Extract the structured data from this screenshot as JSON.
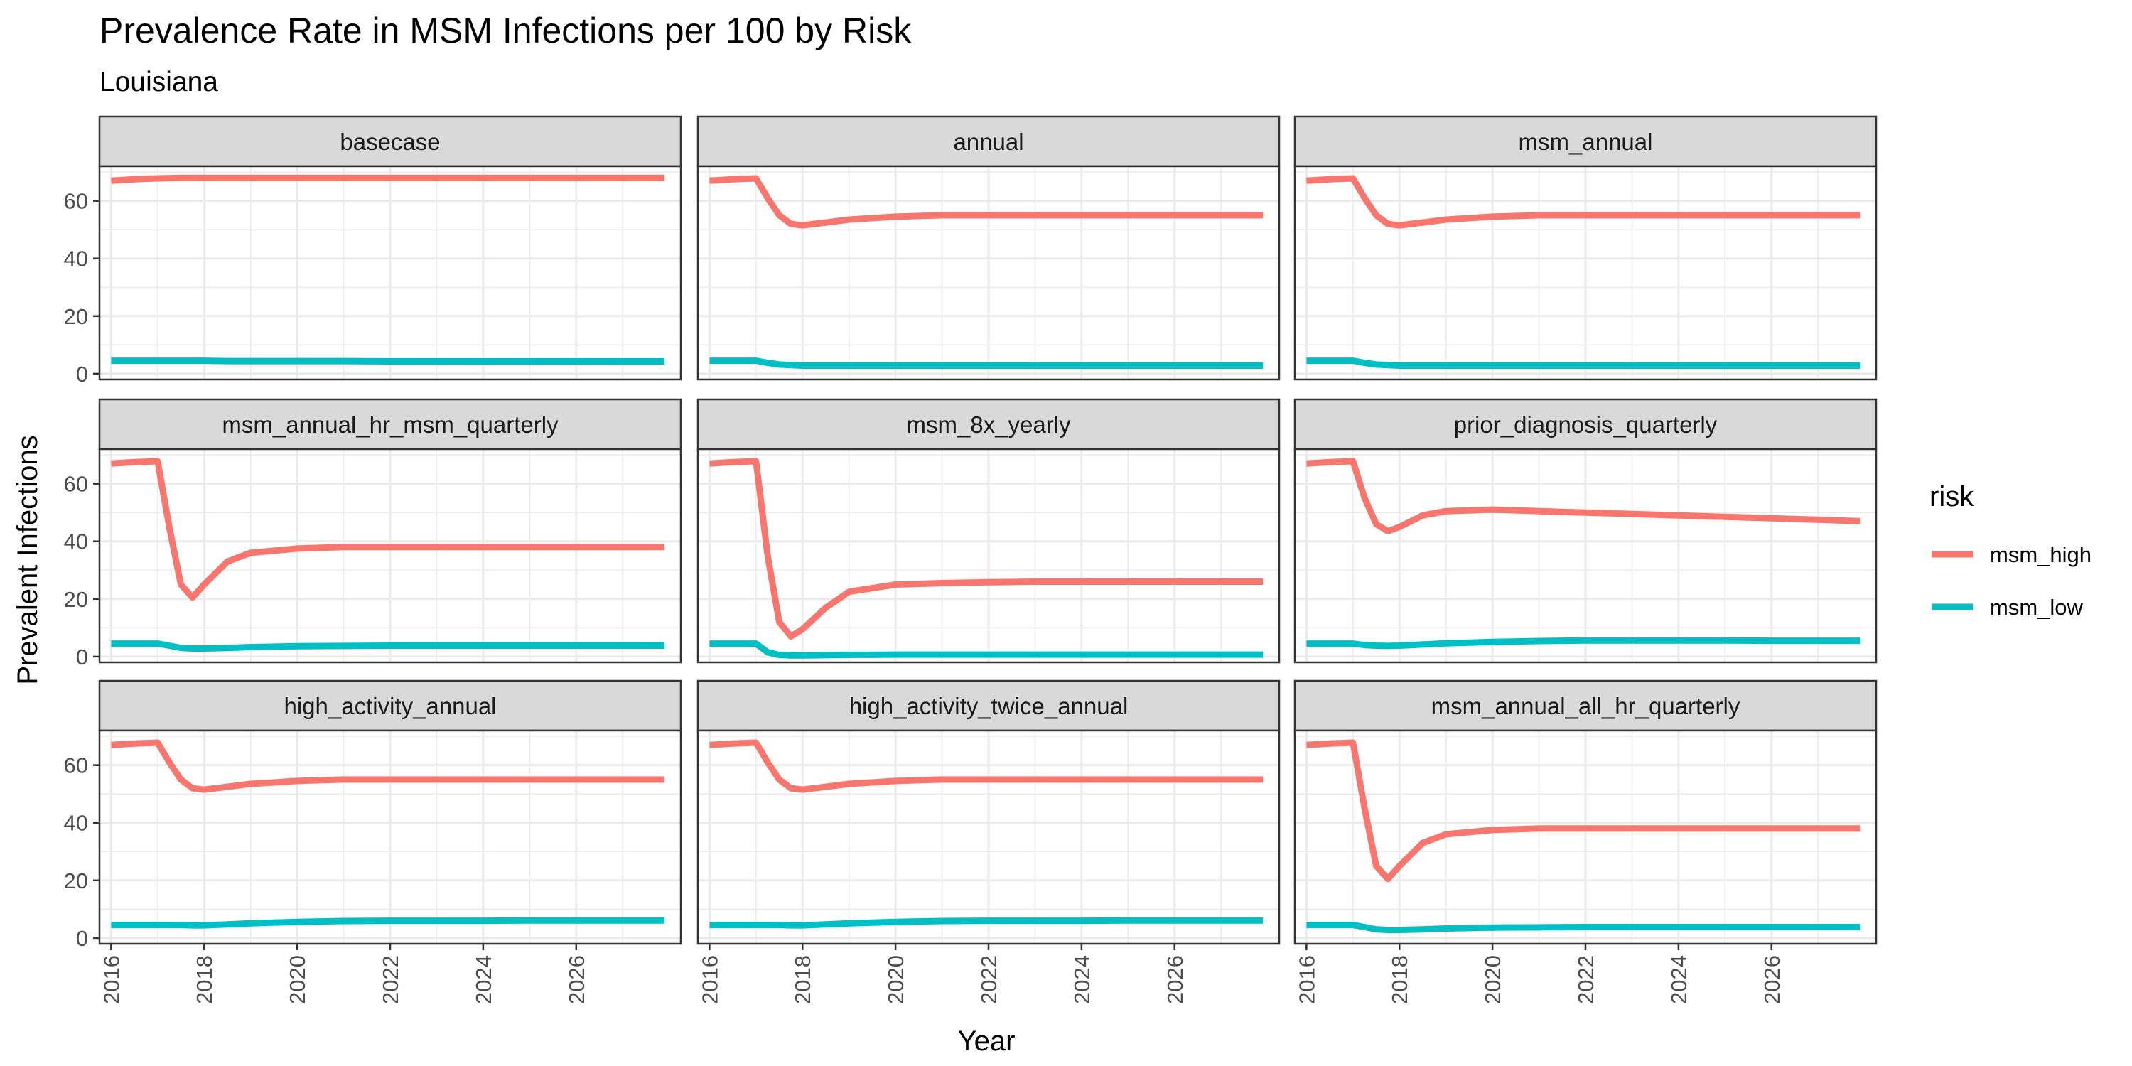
{
  "chart_data": {
    "type": "line",
    "title": "Prevalence Rate in MSM Infections per 100 by Risk",
    "subtitle": "Louisiana",
    "xlabel": "Year",
    "ylabel": "Prevalent Infections",
    "xlim": [
      2015.75,
      2028.25
    ],
    "ylim": [
      -2,
      72
    ],
    "xticks": [
      2016,
      2018,
      2020,
      2022,
      2024,
      2026
    ],
    "yticks": [
      0,
      20,
      40,
      60
    ],
    "grid": true,
    "legend": {
      "title": "risk",
      "position": "right",
      "items": [
        {
          "label": "msm_high",
          "color": "#F8766D"
        },
        {
          "label": "msm_low",
          "color": "#00BFC4"
        }
      ]
    },
    "series_colors": {
      "msm_high": "#F8766D",
      "msm_low": "#00BFC4"
    },
    "x": [
      2016,
      2016.5,
      2017,
      2017.25,
      2017.5,
      2017.75,
      2018,
      2018.5,
      2019,
      2020,
      2021,
      2022,
      2023,
      2024,
      2025,
      2026,
      2027,
      2027.9
    ],
    "facets": [
      {
        "label": "basecase",
        "series": [
          {
            "name": "msm_high",
            "values": [
              67,
              67.5,
              67.8,
              67.9,
              68,
              68,
              68,
              68,
              68,
              68,
              68,
              68,
              68,
              68,
              68,
              68,
              68,
              68
            ]
          },
          {
            "name": "msm_low",
            "values": [
              4.5,
              4.5,
              4.5,
              4.5,
              4.5,
              4.5,
              4.5,
              4.4,
              4.4,
              4.4,
              4.4,
              4.3,
              4.3,
              4.3,
              4.3,
              4.3,
              4.3,
              4.3
            ]
          }
        ]
      },
      {
        "label": "annual",
        "series": [
          {
            "name": "msm_high",
            "values": [
              67,
              67.5,
              67.8,
              61,
              55,
              52,
              51.5,
              52.5,
              53.5,
              54.5,
              55,
              55,
              55,
              55,
              55,
              55,
              55,
              55
            ]
          },
          {
            "name": "msm_low",
            "values": [
              4.5,
              4.5,
              4.5,
              3.8,
              3.2,
              3,
              2.8,
              2.8,
              2.8,
              2.8,
              2.8,
              2.8,
              2.8,
              2.8,
              2.8,
              2.8,
              2.8,
              2.8
            ]
          }
        ]
      },
      {
        "label": "msm_annual",
        "series": [
          {
            "name": "msm_high",
            "values": [
              67,
              67.5,
              67.8,
              61,
              55,
              52,
              51.5,
              52.5,
              53.5,
              54.5,
              55,
              55,
              55,
              55,
              55,
              55,
              55,
              55
            ]
          },
          {
            "name": "msm_low",
            "values": [
              4.5,
              4.5,
              4.5,
              3.8,
              3.2,
              3,
              2.8,
              2.8,
              2.8,
              2.8,
              2.8,
              2.8,
              2.8,
              2.8,
              2.8,
              2.8,
              2.8,
              2.8
            ]
          }
        ]
      },
      {
        "label": "msm_annual_hr_msm_quarterly",
        "series": [
          {
            "name": "msm_high",
            "values": [
              67,
              67.5,
              67.8,
              45,
              25,
              20.5,
              25,
              33,
              36,
              37.5,
              38,
              38,
              38,
              38,
              38,
              38,
              38,
              38
            ]
          },
          {
            "name": "msm_low",
            "values": [
              4.5,
              4.5,
              4.5,
              3.8,
              3,
              2.8,
              2.8,
              3,
              3.3,
              3.6,
              3.7,
              3.8,
              3.8,
              3.8,
              3.8,
              3.8,
              3.8,
              3.8
            ]
          }
        ]
      },
      {
        "label": "msm_8x_yearly",
        "series": [
          {
            "name": "msm_high",
            "values": [
              67,
              67.5,
              67.8,
              35,
              12,
              7,
              9.5,
              17,
              22.5,
              25,
              25.5,
              25.8,
              26,
              26,
              26,
              26,
              26,
              26
            ]
          },
          {
            "name": "msm_low",
            "values": [
              4.5,
              4.5,
              4.5,
              1.5,
              0.6,
              0.4,
              0.4,
              0.5,
              0.6,
              0.7,
              0.7,
              0.7,
              0.7,
              0.7,
              0.7,
              0.7,
              0.7,
              0.7
            ]
          }
        ]
      },
      {
        "label": "prior_diagnosis_quarterly",
        "series": [
          {
            "name": "msm_high",
            "values": [
              67,
              67.5,
              67.8,
              55,
              46,
              43.5,
              45,
              49,
              50.5,
              51,
              50.5,
              50,
              49.5,
              49,
              48.5,
              48,
              47.5,
              47
            ]
          },
          {
            "name": "msm_low",
            "values": [
              4.5,
              4.5,
              4.5,
              4,
              3.8,
              3.7,
              3.8,
              4.2,
              4.6,
              5.1,
              5.4,
              5.6,
              5.6,
              5.6,
              5.6,
              5.5,
              5.5,
              5.5
            ]
          }
        ]
      },
      {
        "label": "high_activity_annual",
        "series": [
          {
            "name": "msm_high",
            "values": [
              67,
              67.5,
              67.8,
              61,
              55,
              52,
              51.5,
              52.5,
              53.5,
              54.5,
              55,
              55,
              55,
              55,
              55,
              55,
              55,
              55
            ]
          },
          {
            "name": "msm_low",
            "values": [
              4.5,
              4.5,
              4.5,
              4.5,
              4.5,
              4.4,
              4.4,
              4.7,
              5.1,
              5.6,
              5.9,
              6,
              6,
              6,
              6.1,
              6.1,
              6.1,
              6.1
            ]
          }
        ]
      },
      {
        "label": "high_activity_twice_annual",
        "series": [
          {
            "name": "msm_high",
            "values": [
              67,
              67.5,
              67.8,
              61,
              55,
              52,
              51.5,
              52.5,
              53.5,
              54.5,
              55,
              55,
              55,
              55,
              55,
              55,
              55,
              55
            ]
          },
          {
            "name": "msm_low",
            "values": [
              4.5,
              4.5,
              4.5,
              4.5,
              4.5,
              4.4,
              4.4,
              4.7,
              5.1,
              5.6,
              5.9,
              6,
              6,
              6,
              6.1,
              6.1,
              6.1,
              6.1
            ]
          }
        ]
      },
      {
        "label": "msm_annual_all_hr_quarterly",
        "series": [
          {
            "name": "msm_high",
            "values": [
              67,
              67.5,
              67.8,
              45,
              25,
              20.5,
              25,
              33,
              36,
              37.5,
              38,
              38,
              38,
              38,
              38,
              38,
              38,
              38
            ]
          },
          {
            "name": "msm_low",
            "values": [
              4.5,
              4.5,
              4.5,
              3.8,
              3,
              2.8,
              2.8,
              3,
              3.3,
              3.6,
              3.7,
              3.8,
              3.8,
              3.8,
              3.8,
              3.8,
              3.8,
              3.8
            ]
          }
        ]
      }
    ]
  }
}
